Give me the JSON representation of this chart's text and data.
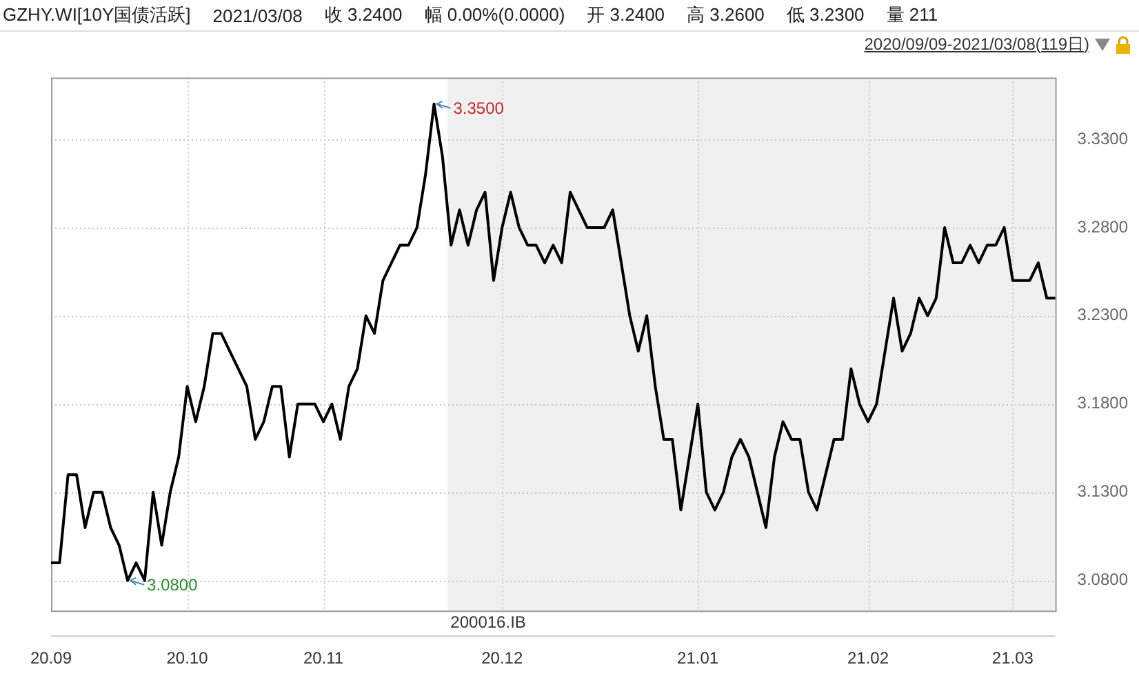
{
  "chart_data": {
    "type": "line",
    "title": "GZHY.WI[10Y国债活跃]",
    "annotations": [
      "2021/03/08",
      "收 3.2400",
      "幅 0.00%(0.0000)",
      "开 3.2400",
      "高 3.2600",
      "低 3.2300",
      "量 211",
      "2020/09/09-2021/03/08(119日)",
      "3.3500",
      "3.0800",
      "200016.IB"
    ],
    "categories": [
      "20.09",
      null,
      null,
      null,
      null,
      null,
      null,
      null,
      null,
      null,
      null,
      null,
      null,
      null,
      null,
      null,
      "20.10",
      null,
      null,
      null,
      null,
      null,
      null,
      null,
      null,
      null,
      null,
      null,
      null,
      null,
      null,
      null,
      "20.11",
      null,
      null,
      null,
      null,
      null,
      null,
      null,
      null,
      null,
      null,
      null,
      null,
      null,
      null,
      null,
      null,
      null,
      null,
      null,
      null,
      "20.12",
      null,
      null,
      null,
      null,
      null,
      null,
      null,
      null,
      null,
      null,
      null,
      null,
      null,
      null,
      null,
      null,
      null,
      null,
      null,
      null,
      null,
      null,
      "21.01",
      null,
      null,
      null,
      null,
      null,
      null,
      null,
      null,
      null,
      null,
      null,
      null,
      null,
      null,
      null,
      null,
      null,
      null,
      null,
      "21.02",
      null,
      null,
      null,
      null,
      null,
      null,
      null,
      null,
      null,
      null,
      null,
      null,
      null,
      null,
      null,
      null,
      "21.03",
      null,
      null,
      null,
      null,
      null
    ],
    "series": [
      {
        "color": "#000000",
        "values": [
          3.09,
          3.09,
          3.14,
          3.14,
          3.11,
          3.13,
          3.13,
          3.11,
          3.1,
          3.08,
          3.09,
          3.08,
          3.13,
          3.1,
          3.13,
          3.15,
          3.19,
          3.17,
          3.19,
          3.22,
          3.22,
          3.21,
          3.2,
          3.19,
          3.16,
          3.17,
          3.19,
          3.19,
          3.15,
          3.18,
          3.18,
          3.18,
          3.17,
          3.18,
          3.16,
          3.19,
          3.2,
          3.23,
          3.22,
          3.25,
          3.26,
          3.27,
          3.27,
          3.28,
          3.31,
          3.35,
          3.32,
          3.27,
          3.29,
          3.27,
          3.29,
          3.3,
          3.25,
          3.28,
          3.3,
          3.28,
          3.27,
          3.27,
          3.26,
          3.27,
          3.26,
          3.3,
          3.29,
          3.28,
          3.28,
          3.28,
          3.29,
          3.26,
          3.23,
          3.21,
          3.23,
          3.19,
          3.16,
          3.16,
          3.12,
          3.15,
          3.18,
          3.13,
          3.12,
          3.13,
          3.15,
          3.16,
          3.15,
          3.13,
          3.11,
          3.15,
          3.17,
          3.16,
          3.16,
          3.13,
          3.12,
          3.14,
          3.16,
          3.16,
          3.2,
          3.18,
          3.17,
          3.18,
          3.21,
          3.24,
          3.21,
          3.22,
          3.24,
          3.23,
          3.24,
          3.28,
          3.26,
          3.26,
          3.27,
          3.26,
          3.27,
          3.27,
          3.28,
          3.25,
          3.25,
          3.25,
          3.26,
          3.24,
          3.24
        ]
      }
    ],
    "ylim": [
      3.063,
      3.365
    ],
    "yticks": [
      {
        "value": 3.08,
        "label": "3.0800"
      },
      {
        "value": 3.13,
        "label": "3.1300"
      },
      {
        "value": 3.18,
        "label": "3.1800"
      },
      {
        "value": 3.23,
        "label": "3.2300"
      },
      {
        "value": 3.28,
        "label": "3.2800"
      },
      {
        "value": 3.33,
        "label": "3.3300"
      }
    ],
    "grid": true,
    "legend": false,
    "marker": "none",
    "line_style": "solid"
  }
}
